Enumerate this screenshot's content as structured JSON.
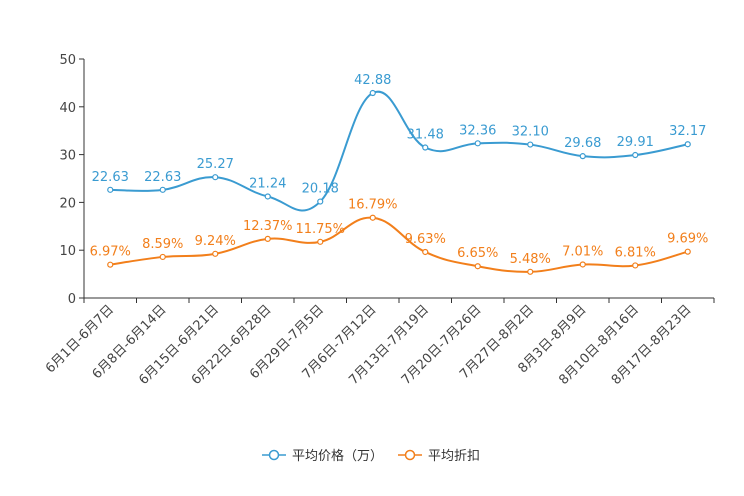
{
  "chart_data": {
    "type": "line",
    "title": "",
    "xlabel": "",
    "ylabel": "",
    "ylim": [
      0,
      50
    ],
    "yticks": [
      0,
      10,
      20,
      30,
      40,
      50
    ],
    "legend_position": "bottom-center",
    "categories": [
      "6月1日-6月7日",
      "6月8日-6月14日",
      "6月15日-6月21日",
      "6月22日-6月28日",
      "6月29日-7月5日",
      "7月6日-7月12日",
      "7月13日-7月19日",
      "7月20日-7月26日",
      "7月27日-8月2日",
      "8月3日-8月9日",
      "8月10日-8月16日",
      "8月17日-8月23日"
    ],
    "series": [
      {
        "name": "平均价格（万）",
        "color": "#3a9bd1",
        "values": [
          22.63,
          22.63,
          25.27,
          21.24,
          20.18,
          42.88,
          31.48,
          32.36,
          32.1,
          29.68,
          29.91,
          32.17
        ],
        "labels": [
          "22.63",
          "22.63",
          "25.27",
          "21.24",
          "20.18",
          "42.88",
          "31.48",
          "32.36",
          "32.10",
          "29.68",
          "29.91",
          "32.17"
        ]
      },
      {
        "name": "平均折扣",
        "color": "#f27f1b",
        "values": [
          6.97,
          8.59,
          9.24,
          12.37,
          11.75,
          16.79,
          9.63,
          6.65,
          5.48,
          7.01,
          6.81,
          9.69
        ],
        "labels": [
          "6.97%",
          "8.59%",
          "9.24%",
          "12.37%",
          "11.75%",
          "16.79%",
          "9.63%",
          "6.65%",
          "5.48%",
          "7.01%",
          "6.81%",
          "9.69%"
        ]
      }
    ]
  }
}
